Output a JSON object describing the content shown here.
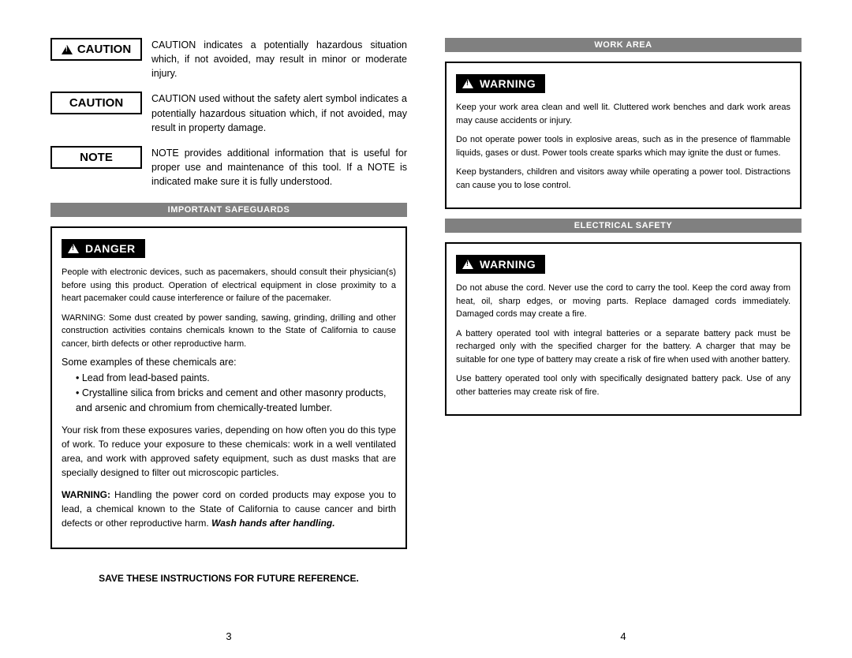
{
  "left": {
    "defs": [
      {
        "icon": true,
        "label": "CAUTION",
        "textHtml": "<span class='lead'>CAUTION</span> indicates a potentially hazardous situation which, if not avoided, may result in minor or moderate injury."
      },
      {
        "icon": false,
        "label": "CAUTION",
        "textHtml": "<span class='lead'>CAUTION</span> used without the safety alert symbol indicates a potentially hazardous situation which, if not avoided, may result in property damage."
      },
      {
        "icon": false,
        "label": "NOTE",
        "textHtml": "<span class='lead'>NOTE</span> provides additional information that is useful for proper use and maintenance of this tool. If a NOTE is indicated make sure it is fully understood."
      }
    ],
    "section_title": "IMPORTANT SAFEGUARDS",
    "badge": "DANGER",
    "paras": [
      "<span class='lead'>People with electronic devices, such as pacemakers, should consult their physician(s) before using this product. Operation of electrical equipment in close proximity to a heart pacemaker could cause interference or failure of the pacemaker.</span>",
      "<span class='lead'>WARNING:</span> Some dust created by power sanding, sawing, grinding, drilling and other construction activities contains chemicals known to the State of California to cause cancer, birth defects or other reproductive harm."
    ],
    "examples_intro": "Some examples of these chemicals are:",
    "examples": [
      "Lead from lead-based paints.",
      "Crystalline silica from bricks and cement and other masonry products, and arsenic and chromium from chemically-treated lumber."
    ],
    "paras2": [
      "Your risk from these exposures varies, depending on how often you do this type of work. To reduce your exposure to these chemicals: work in a well ventilated area, and work with approved safety equipment, such as dust masks that are specially designed to filter out microscopic particles.",
      "<span class='lead'>WARNING:</span> Handling the power cord on corded products may expose you to lead, a chemical known to the State of California to cause cancer and birth defects or other reproductive harm. <em class='wash'>Wash hands after handling.</em>"
    ],
    "save": "SAVE THESE INSTRUCTIONS FOR FUTURE REFERENCE.",
    "pagenum": "3"
  },
  "right": {
    "section1_title": "WORK AREA",
    "badge": "WARNING",
    "s1_paras": [
      "<span class='lead'>Keep your work area clean and well lit.</span> Cluttered work benches and dark work areas may cause accidents or injury.",
      "<span class='lead'>Do not operate power tools in explosive areas, such as in the presence of flammable liquids, gases or dust.</span> Power tools create sparks which may ignite the dust or fumes.",
      "<span class='lead'>Keep bystanders, children and visitors away while operating a power tool.</span> Distractions can cause you to lose control."
    ],
    "section2_title": "ELECTRICAL SAFETY",
    "s2_paras": [
      "<span class='lead'>Do not abuse the cord. Never use the cord to carry the tool. Keep the cord away from heat, oil, sharp edges, or moving parts. Replace damaged cords immediately.</span> Damaged cords may create a fire.",
      "<span class='lead'>A battery operated tool with integral batteries or a separate battery pack must be recharged only with the specified charger for the battery.</span> A charger that may be suitable for one type of battery may create a risk of fire when used with another battery.",
      "<span class='lead'>Use battery operated tool only with specifically designated battery pack.</span> Use of any other batteries may create risk of fire."
    ],
    "pagenum": "4"
  }
}
